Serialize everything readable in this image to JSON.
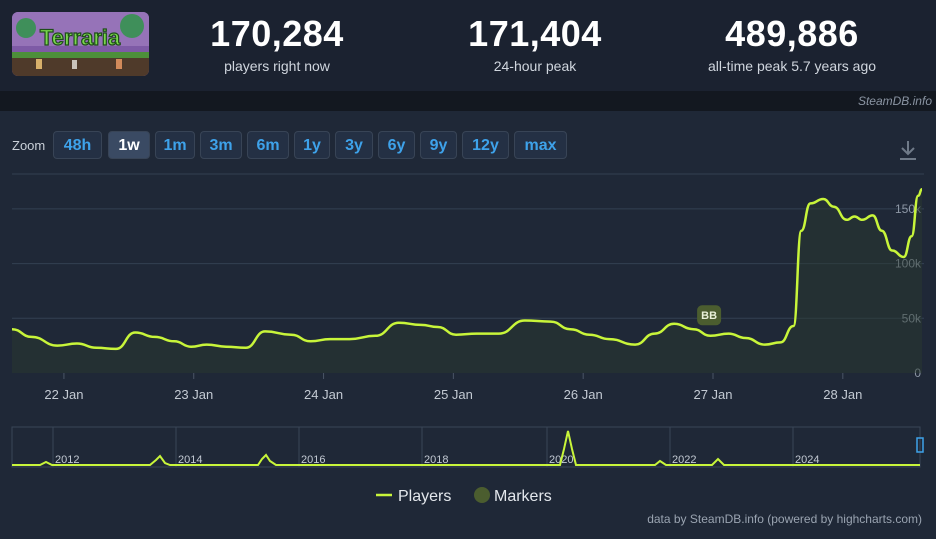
{
  "header": {
    "game_logo_text": "Terraria",
    "stats": [
      {
        "value": "170,284",
        "label": "players right now"
      },
      {
        "value": "171,404",
        "label": "24-hour peak"
      },
      {
        "value": "489,886",
        "label": "all-time peak 5.7 years ago"
      }
    ],
    "brand": "SteamDB.info"
  },
  "zoom": {
    "label": "Zoom",
    "buttons": [
      "48h",
      "1w",
      "1m",
      "3m",
      "6m",
      "1y",
      "3y",
      "6y",
      "9y",
      "12y",
      "max"
    ],
    "active": "1w"
  },
  "chart_data": {
    "type": "line",
    "ylim": [
      0,
      170000
    ],
    "y_ticks": [
      {
        "value": 0,
        "label": "0"
      },
      {
        "value": 50000,
        "label": "50k"
      },
      {
        "value": 100000,
        "label": "100k"
      },
      {
        "value": 150000,
        "label": "150k"
      }
    ],
    "x_range": [
      21.6,
      28.61
    ],
    "x_ticks": [
      {
        "value": 22,
        "label": "22 Jan"
      },
      {
        "value": 23,
        "label": "23 Jan"
      },
      {
        "value": 24,
        "label": "24 Jan"
      },
      {
        "value": 25,
        "label": "25 Jan"
      },
      {
        "value": 26,
        "label": "26 Jan"
      },
      {
        "value": 27,
        "label": "27 Jan"
      },
      {
        "value": 28,
        "label": "28 Jan"
      }
    ],
    "series": [
      {
        "name": "Players",
        "color": "#c8f53a",
        "points": [
          [
            21.6,
            40000
          ],
          [
            21.75,
            33000
          ],
          [
            21.95,
            25000
          ],
          [
            22.1,
            27000
          ],
          [
            22.25,
            23000
          ],
          [
            22.4,
            22000
          ],
          [
            22.55,
            37000
          ],
          [
            22.7,
            33000
          ],
          [
            22.85,
            29000
          ],
          [
            22.98,
            24000
          ],
          [
            23.1,
            26000
          ],
          [
            23.25,
            24000
          ],
          [
            23.4,
            23000
          ],
          [
            23.55,
            38000
          ],
          [
            23.75,
            35000
          ],
          [
            23.9,
            29000
          ],
          [
            24.05,
            31000
          ],
          [
            24.2,
            31000
          ],
          [
            24.4,
            34000
          ],
          [
            24.58,
            46000
          ],
          [
            24.75,
            44000
          ],
          [
            24.88,
            42000
          ],
          [
            25.02,
            35000
          ],
          [
            25.18,
            36000
          ],
          [
            25.35,
            36000
          ],
          [
            25.55,
            48000
          ],
          [
            25.75,
            47000
          ],
          [
            25.9,
            40000
          ],
          [
            26.05,
            35000
          ],
          [
            26.2,
            31000
          ],
          [
            26.4,
            26000
          ],
          [
            26.55,
            36000
          ],
          [
            26.7,
            45000
          ],
          [
            26.85,
            40000
          ],
          [
            26.98,
            34000
          ],
          [
            27.12,
            36000
          ],
          [
            27.25,
            32000
          ],
          [
            27.4,
            26000
          ],
          [
            27.52,
            28000
          ],
          [
            27.62,
            43000
          ],
          [
            27.68,
            130000
          ],
          [
            27.75,
            155000
          ],
          [
            27.85,
            159000
          ],
          [
            27.93,
            152000
          ],
          [
            28.03,
            140000
          ],
          [
            28.09,
            143000
          ],
          [
            28.15,
            140000
          ],
          [
            28.23,
            144000
          ],
          [
            28.3,
            130000
          ],
          [
            28.38,
            112000
          ],
          [
            28.47,
            106000
          ],
          [
            28.53,
            125000
          ],
          [
            28.58,
            162000
          ],
          [
            28.61,
            168000
          ]
        ]
      }
    ],
    "markers": [
      {
        "x": 26.97,
        "y": 40000,
        "label": "BB"
      }
    ],
    "navigator": {
      "labels": [
        "2012",
        "2014",
        "2016",
        "2018",
        "2020",
        "2022",
        "2024"
      ]
    },
    "legend": [
      {
        "name": "Players",
        "color": "#c8f53a"
      },
      {
        "name": "Markers",
        "color": "#4b5d2f"
      }
    ]
  },
  "footer_credit": "data by SteamDB.info (powered by highcharts.com)"
}
